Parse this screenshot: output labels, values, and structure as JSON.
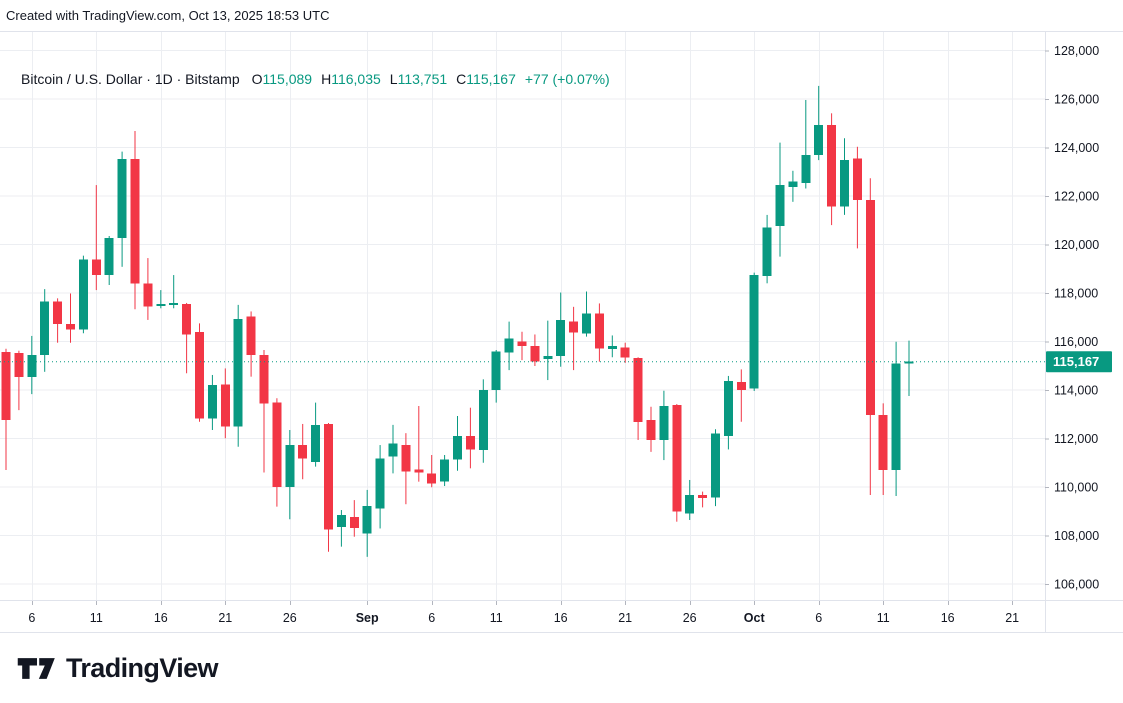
{
  "topbar": {
    "created_with": "Created with TradingView.com, Oct 13, 2025 18:53 UTC"
  },
  "legend": {
    "symbol": "Bitcoin / U.S. Dollar · 1D · Bitstamp",
    "ohlc": [
      {
        "label": "O",
        "value": "115,089"
      },
      {
        "label": "H",
        "value": "116,035"
      },
      {
        "label": "L",
        "value": "113,751"
      },
      {
        "label": "C",
        "value": "115,167"
      }
    ],
    "change": "+77 (+0.07%)"
  },
  "watermark": {
    "brand": "TradingView"
  },
  "colors": {
    "up": "#089981",
    "down": "#F23645",
    "text": "#131722",
    "grid": "#eceef2",
    "border": "#e0e3eb",
    "tick": "#b2b5be",
    "price_tag_bg": "#089981",
    "price_tag_text": "#ffffff",
    "background": "#ffffff"
  },
  "chart_data": {
    "type": "candlestick",
    "title": "Bitcoin / U.S. Dollar",
    "exchange": "Bitstamp",
    "interval": "1D",
    "ylim": [
      105300,
      128800
    ],
    "grid": true,
    "current_price": {
      "value": 115167,
      "label": "115,167"
    },
    "price_ticks": [
      {
        "label": "128,000",
        "value": 128000
      },
      {
        "label": "126,000",
        "value": 126000
      },
      {
        "label": "124,000",
        "value": 124000
      },
      {
        "label": "122,000",
        "value": 122000
      },
      {
        "label": "120,000",
        "value": 120000
      },
      {
        "label": "118,000",
        "value": 118000
      },
      {
        "label": "116,000",
        "value": 116000
      },
      {
        "label": "114,000",
        "value": 114000
      },
      {
        "label": "112,000",
        "value": 112000
      },
      {
        "label": "110,000",
        "value": 110000
      },
      {
        "label": "108,000",
        "value": 108000
      },
      {
        "label": "106,000",
        "value": 106000
      }
    ],
    "time_ticks": [
      {
        "label": "6",
        "days_from_last": 68,
        "bold": false
      },
      {
        "label": "11",
        "days_from_last": 63,
        "bold": false
      },
      {
        "label": "16",
        "days_from_last": 58,
        "bold": false
      },
      {
        "label": "21",
        "days_from_last": 53,
        "bold": false
      },
      {
        "label": "26",
        "days_from_last": 48,
        "bold": false
      },
      {
        "label": "Sep",
        "days_from_last": 42,
        "bold": true
      },
      {
        "label": "6",
        "days_from_last": 37,
        "bold": false
      },
      {
        "label": "11",
        "days_from_last": 32,
        "bold": false
      },
      {
        "label": "16",
        "days_from_last": 27,
        "bold": false
      },
      {
        "label": "21",
        "days_from_last": 22,
        "bold": false
      },
      {
        "label": "26",
        "days_from_last": 17,
        "bold": false
      },
      {
        "label": "Oct",
        "days_from_last": 12,
        "bold": true
      },
      {
        "label": "6",
        "days_from_last": 7,
        "bold": false
      },
      {
        "label": "11",
        "days_from_last": 2,
        "bold": false
      },
      {
        "label": "16",
        "days_from_last": -3,
        "bold": false
      },
      {
        "label": "21",
        "days_from_last": -8,
        "bold": false
      }
    ],
    "candles": [
      [
        "Aug 4",
        115560,
        115700,
        110700,
        112760
      ],
      [
        "Aug 5",
        115520,
        115620,
        113170,
        114530
      ],
      [
        "Aug 6",
        114530,
        116230,
        113830,
        115440
      ],
      [
        "Aug 7",
        115440,
        118160,
        114750,
        117640
      ],
      [
        "Aug 8",
        117640,
        117780,
        115950,
        116720
      ],
      [
        "Aug 9",
        116720,
        117980,
        115950,
        116500
      ],
      [
        "Aug 10",
        116500,
        119540,
        116340,
        119390
      ],
      [
        "Aug 11",
        119390,
        122450,
        118120,
        118740
      ],
      [
        "Aug 12",
        118740,
        120350,
        118330,
        120260
      ],
      [
        "Aug 13",
        120260,
        123830,
        119080,
        123520
      ],
      [
        "Aug 14",
        123520,
        124680,
        117330,
        118400
      ],
      [
        "Aug 15",
        118400,
        119440,
        116890,
        117440
      ],
      [
        "Aug 16",
        117470,
        118120,
        117370,
        117550
      ],
      [
        "Aug 17",
        117500,
        118740,
        117370,
        117580
      ],
      [
        "Aug 18",
        117550,
        117590,
        114690,
        116290
      ],
      [
        "Aug 19",
        116400,
        116750,
        112690,
        112830
      ],
      [
        "Aug 20",
        112830,
        114620,
        112350,
        114200
      ],
      [
        "Aug 21",
        114230,
        114890,
        112010,
        112490
      ],
      [
        "Aug 22",
        112490,
        117510,
        111660,
        116920
      ],
      [
        "Aug 23",
        117030,
        117240,
        114550,
        115440
      ],
      [
        "Aug 24",
        115440,
        115650,
        110600,
        113450
      ],
      [
        "Aug 25",
        113480,
        113660,
        109190,
        110010
      ],
      [
        "Aug 26",
        109990,
        112350,
        108670,
        111730
      ],
      [
        "Aug 27",
        111730,
        112600,
        110320,
        111180
      ],
      [
        "Aug 28",
        111040,
        113480,
        110840,
        112560
      ],
      [
        "Aug 29",
        112600,
        112640,
        107330,
        108250
      ],
      [
        "Aug 30",
        108360,
        109050,
        107540,
        108840
      ],
      [
        "Aug 31",
        108770,
        109460,
        107950,
        108300
      ],
      [
        "Sep 1",
        108090,
        109880,
        107120,
        109220
      ],
      [
        "Sep 2",
        109120,
        111730,
        108290,
        111180
      ],
      [
        "Sep 3",
        111250,
        112560,
        110560,
        111800
      ],
      [
        "Sep 4",
        111730,
        112220,
        109290,
        110630
      ],
      [
        "Sep 5",
        110730,
        113340,
        110220,
        110590
      ],
      [
        "Sep 6",
        110560,
        111320,
        109990,
        110150
      ],
      [
        "Sep 7",
        110220,
        111320,
        110040,
        111140
      ],
      [
        "Sep 8",
        111140,
        112930,
        110670,
        112100
      ],
      [
        "Sep 9",
        112100,
        113270,
        110770,
        111550
      ],
      [
        "Sep 10",
        111520,
        114440,
        111000,
        114000
      ],
      [
        "Sep 11",
        114000,
        115650,
        113480,
        115580
      ],
      [
        "Sep 12",
        115540,
        116820,
        114820,
        116130
      ],
      [
        "Sep 13",
        115990,
        116400,
        115230,
        115810
      ],
      [
        "Sep 14",
        115810,
        116290,
        114990,
        115170
      ],
      [
        "Sep 15",
        115270,
        116860,
        114410,
        115410
      ],
      [
        "Sep 16",
        115410,
        118020,
        114960,
        116880
      ],
      [
        "Sep 17",
        116830,
        117430,
        114820,
        116370
      ],
      [
        "Sep 18",
        116330,
        118060,
        116200,
        117160
      ],
      [
        "Sep 19",
        117160,
        117570,
        115170,
        115720
      ],
      [
        "Sep 20",
        115700,
        116250,
        115350,
        115810
      ],
      [
        "Sep 21",
        115760,
        115950,
        115120,
        115350
      ],
      [
        "Sep 22",
        115310,
        115350,
        111940,
        112690
      ],
      [
        "Sep 23",
        112760,
        113310,
        111450,
        111940
      ],
      [
        "Sep 24",
        111940,
        113970,
        111110,
        113340
      ],
      [
        "Sep 25",
        113380,
        113420,
        108570,
        108980
      ],
      [
        "Sep 26",
        108910,
        110290,
        108640,
        109670
      ],
      [
        "Sep 27",
        109670,
        109810,
        109160,
        109550
      ],
      [
        "Sep 28",
        109570,
        112380,
        109210,
        112210
      ],
      [
        "Sep 29",
        112100,
        114580,
        111550,
        114380
      ],
      [
        "Sep 30",
        114340,
        114850,
        112690,
        114000
      ],
      [
        "Oct 1",
        114070,
        118840,
        113960,
        118740
      ],
      [
        "Oct 2",
        118700,
        121220,
        118400,
        120710
      ],
      [
        "Oct 3",
        120760,
        124200,
        119500,
        122450
      ],
      [
        "Oct 4",
        122380,
        123040,
        121760,
        122590
      ],
      [
        "Oct 5",
        122540,
        125960,
        122310,
        123690
      ],
      [
        "Oct 6",
        123690,
        126540,
        123480,
        124930
      ],
      [
        "Oct 7",
        124930,
        125410,
        120800,
        121560
      ],
      [
        "Oct 8",
        121560,
        124380,
        121220,
        123480
      ],
      [
        "Oct 9",
        123550,
        124030,
        119840,
        121830
      ],
      [
        "Oct 10",
        121830,
        122730,
        109670,
        112970
      ],
      [
        "Oct 11",
        112970,
        113450,
        109670,
        110700
      ],
      [
        "Oct 12",
        110700,
        115990,
        109630,
        115100
      ],
      [
        "Oct 13",
        115089,
        116035,
        113751,
        115167
      ]
    ]
  }
}
